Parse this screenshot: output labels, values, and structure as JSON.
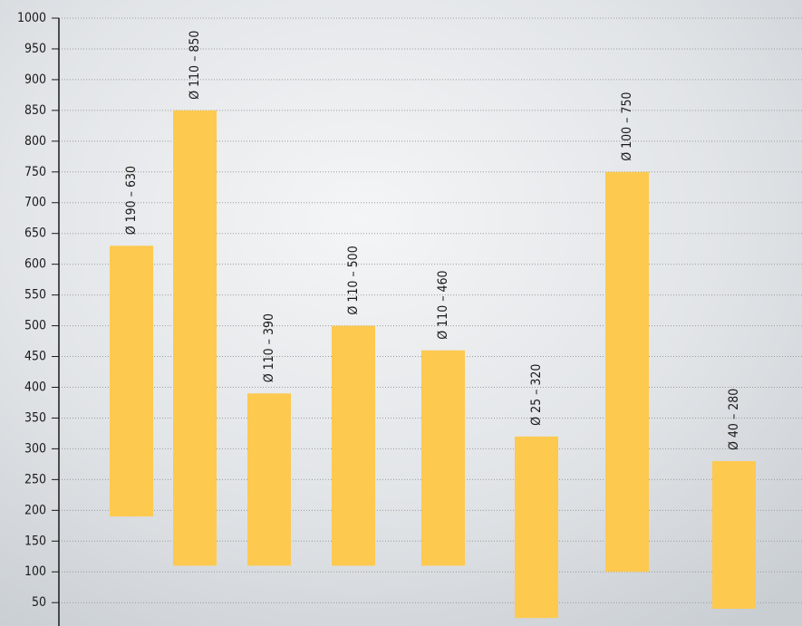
{
  "chart_data": {
    "type": "range-bar",
    "low": [
      190,
      110,
      110,
      110,
      110,
      25,
      100,
      40
    ],
    "high": [
      630,
      850,
      390,
      500,
      460,
      320,
      750,
      280
    ],
    "value_labels": [
      "Ø 190 – 630",
      "Ø 110 – 850",
      "Ø 110 – 390",
      "Ø 110 – 500",
      "Ø 110 – 460",
      "Ø 25 – 320",
      "Ø 100 – 750",
      "Ø 40 – 280"
    ],
    "color": "#fdc94f",
    "ylim": [
      12,
      1000
    ],
    "yticks": [
      50,
      100,
      150,
      200,
      250,
      300,
      350,
      400,
      450,
      500,
      550,
      600,
      650,
      700,
      750,
      800,
      850,
      900,
      950,
      1000
    ],
    "grid": true
  }
}
